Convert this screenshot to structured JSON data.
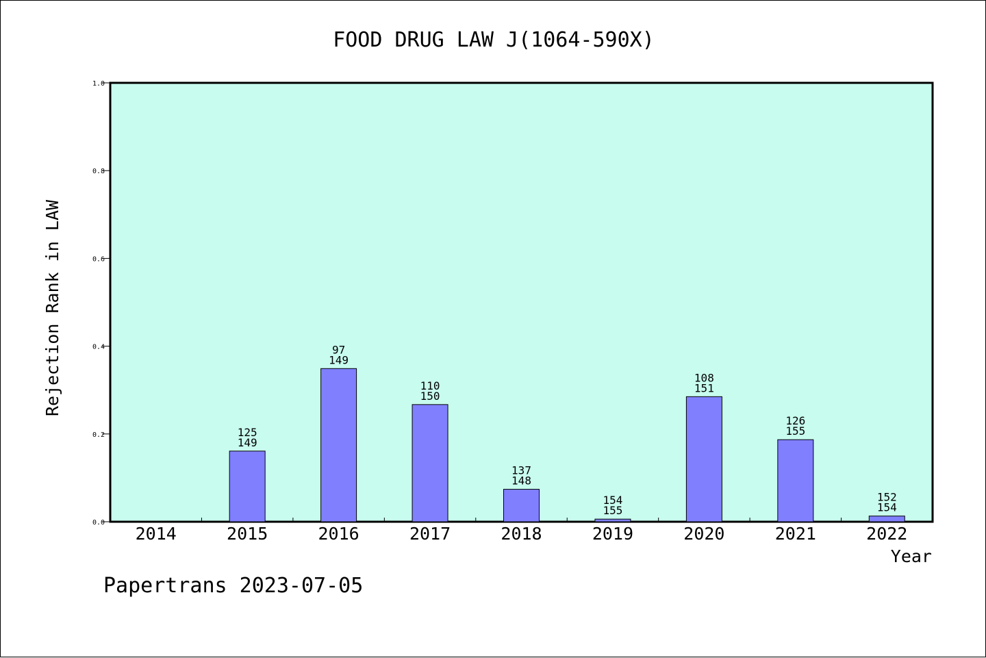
{
  "chart_data": {
    "type": "bar",
    "title": "FOOD DRUG LAW J(1064-590X)",
    "xlabel": "Year",
    "ylabel": "Rejection Rank in LAW",
    "ylim": [
      0,
      1.0
    ],
    "yticks": [
      "0.0",
      "0.2",
      "0.4",
      "0.6",
      "0.8",
      "1.0"
    ],
    "grid": false,
    "categories": [
      "2014",
      "2015",
      "2016",
      "2017",
      "2018",
      "2019",
      "2020",
      "2021",
      "2022"
    ],
    "values": [
      0,
      0.161,
      0.349,
      0.267,
      0.074,
      0.006,
      0.285,
      0.187,
      0.013
    ],
    "label_top": [
      "",
      "125",
      "97",
      "110",
      "137",
      "154",
      "108",
      "126",
      "152"
    ],
    "label_bottom": [
      "",
      "149",
      "149",
      "150",
      "148",
      "155",
      "151",
      "155",
      "154"
    ],
    "colors": {
      "plot_background": "#c8fcee",
      "bar_fill": "#8080ff",
      "bar_stroke": "#000000"
    }
  },
  "footer": "Papertrans 2023-07-05"
}
